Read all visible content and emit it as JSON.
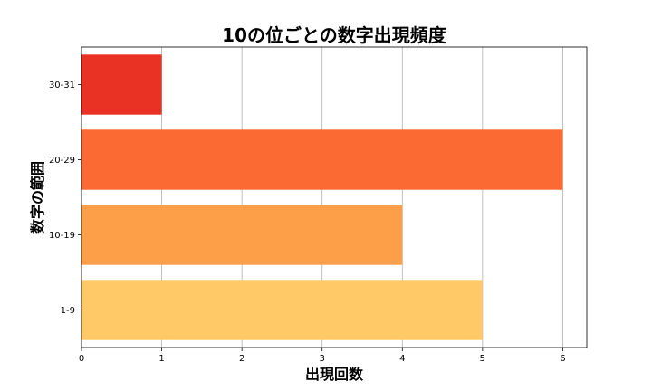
{
  "chart_data": {
    "type": "bar",
    "orientation": "horizontal",
    "title": "10の位ごとの数字出現頻度",
    "xlabel": "出現回数",
    "ylabel": "数字の範囲",
    "categories": [
      "1-9",
      "10-19",
      "20-29",
      "30-31"
    ],
    "values": [
      5,
      4,
      6,
      1
    ],
    "colors": [
      "#fec966",
      "#fd9f48",
      "#fc6a33",
      "#e93124"
    ],
    "xlim": [
      0,
      6.3
    ],
    "x_ticks": [
      0,
      1,
      2,
      3,
      4,
      5,
      6
    ],
    "grid": "vertical"
  }
}
